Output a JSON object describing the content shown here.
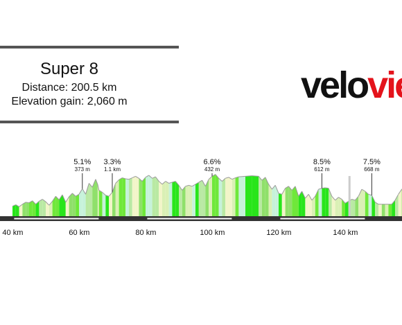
{
  "header": {
    "title": "Super 8",
    "distance": "Distance: 200.5 km",
    "elevation_gain": "Elevation gain: 2,060 m"
  },
  "logo": {
    "text_dark": "velo",
    "text_red": "view"
  },
  "colors": {
    "rule": "#555555",
    "logo_red": "#e4131b",
    "road": "#333333",
    "segment_palette": [
      "#29e51b",
      "#6fe83a",
      "#8fe06a",
      "#b9e9a3",
      "#c6f2da",
      "#daf0b5",
      "#f2f5c9"
    ]
  },
  "chart_data": {
    "type": "area",
    "title": "",
    "xlabel": "",
    "ylabel": "",
    "xlim": [
      32,
      175
    ],
    "ylim": [
      0,
      800
    ],
    "x_ticks": [
      {
        "value": 40,
        "label": "40 km"
      },
      {
        "value": 60,
        "label": "60 km"
      },
      {
        "value": 80,
        "label": "80 km"
      },
      {
        "value": 100,
        "label": "100 km"
      },
      {
        "value": 120,
        "label": "120 km"
      },
      {
        "value": 140,
        "label": "140 km"
      }
    ],
    "profile": [
      [
        32,
        100
      ],
      [
        33,
        115
      ],
      [
        34,
        95
      ],
      [
        35,
        120
      ],
      [
        36,
        140
      ],
      [
        37,
        135
      ],
      [
        38,
        155
      ],
      [
        39,
        120
      ],
      [
        40,
        150
      ],
      [
        41,
        170
      ],
      [
        42,
        145
      ],
      [
        43,
        110
      ],
      [
        44,
        150
      ],
      [
        45,
        200
      ],
      [
        46,
        165
      ],
      [
        47,
        215
      ],
      [
        48,
        140
      ],
      [
        49,
        195
      ],
      [
        50,
        230
      ],
      [
        51,
        200
      ],
      [
        52,
        220
      ],
      [
        53,
        275
      ],
      [
        54,
        220
      ],
      [
        55,
        330
      ],
      [
        56,
        290
      ],
      [
        57,
        370
      ],
      [
        57.6,
        320
      ],
      [
        58,
        260
      ],
      [
        59,
        240
      ],
      [
        60,
        210
      ],
      [
        61,
        200
      ],
      [
        62,
        240
      ],
      [
        63,
        330
      ],
      [
        64,
        365
      ],
      [
        65,
        385
      ],
      [
        66,
        375
      ],
      [
        67,
        370
      ],
      [
        68,
        385
      ],
      [
        69,
        400
      ],
      [
        70,
        380
      ],
      [
        71,
        350
      ],
      [
        72,
        390
      ],
      [
        73,
        410
      ],
      [
        74,
        380
      ],
      [
        75,
        395
      ],
      [
        76,
        350
      ],
      [
        77,
        320
      ],
      [
        78,
        350
      ],
      [
        79,
        330
      ],
      [
        80,
        340
      ],
      [
        81,
        350
      ],
      [
        82,
        310
      ],
      [
        83,
        260
      ],
      [
        84,
        300
      ],
      [
        85,
        310
      ],
      [
        86,
        300
      ],
      [
        87,
        320
      ],
      [
        88,
        340
      ],
      [
        89,
        360
      ],
      [
        90,
        300
      ],
      [
        91,
        370
      ],
      [
        92,
        400
      ],
      [
        93,
        420
      ],
      [
        94,
        380
      ],
      [
        95,
        350
      ],
      [
        96,
        380
      ],
      [
        97,
        390
      ],
      [
        98,
        370
      ],
      [
        99,
        385
      ],
      [
        100,
        395
      ],
      [
        102,
        400
      ],
      [
        104,
        405
      ],
      [
        106,
        400
      ],
      [
        107,
        360
      ],
      [
        108,
        390
      ],
      [
        109,
        320
      ],
      [
        110,
        270
      ],
      [
        111,
        310
      ],
      [
        112,
        230
      ],
      [
        113,
        220
      ],
      [
        114,
        280
      ],
      [
        115,
        300
      ],
      [
        116,
        260
      ],
      [
        117,
        300
      ],
      [
        118,
        200
      ],
      [
        119,
        250
      ],
      [
        120,
        180
      ],
      [
        121,
        220
      ],
      [
        122,
        160
      ],
      [
        123,
        200
      ],
      [
        124,
        270
      ],
      [
        125,
        280
      ],
      [
        126,
        285
      ],
      [
        127,
        280
      ],
      [
        128,
        200
      ],
      [
        129,
        160
      ],
      [
        130,
        190
      ],
      [
        131,
        170
      ],
      [
        132,
        130
      ],
      [
        133,
        150
      ],
      [
        134,
        170
      ],
      [
        135,
        160
      ],
      [
        136,
        200
      ],
      [
        137,
        270
      ],
      [
        138,
        250
      ],
      [
        139,
        220
      ],
      [
        140,
        210
      ],
      [
        141,
        140
      ],
      [
        142,
        120
      ],
      [
        143,
        120
      ],
      [
        144,
        120
      ],
      [
        145,
        120
      ],
      [
        146,
        120
      ],
      [
        147,
        160
      ],
      [
        148,
        220
      ],
      [
        149,
        270
      ],
      [
        150,
        300
      ],
      [
        151,
        310
      ],
      [
        152,
        250
      ],
      [
        153,
        280
      ],
      [
        154,
        300
      ],
      [
        155,
        310
      ],
      [
        156,
        305
      ]
    ],
    "climbs": [
      {
        "km": 53,
        "gradient": "5.1%",
        "length": "373 m"
      },
      {
        "km": 62,
        "gradient": "3.3%",
        "length": "1.1 km"
      },
      {
        "km": 92,
        "gradient": "6.6%",
        "length": "432 m"
      },
      {
        "km": 125,
        "gradient": "8.5%",
        "length": "612 m"
      },
      {
        "km": 140,
        "gradient": "7.5%",
        "length": "668 m"
      }
    ],
    "markers": [
      {
        "km": 133.3
      }
    ]
  }
}
